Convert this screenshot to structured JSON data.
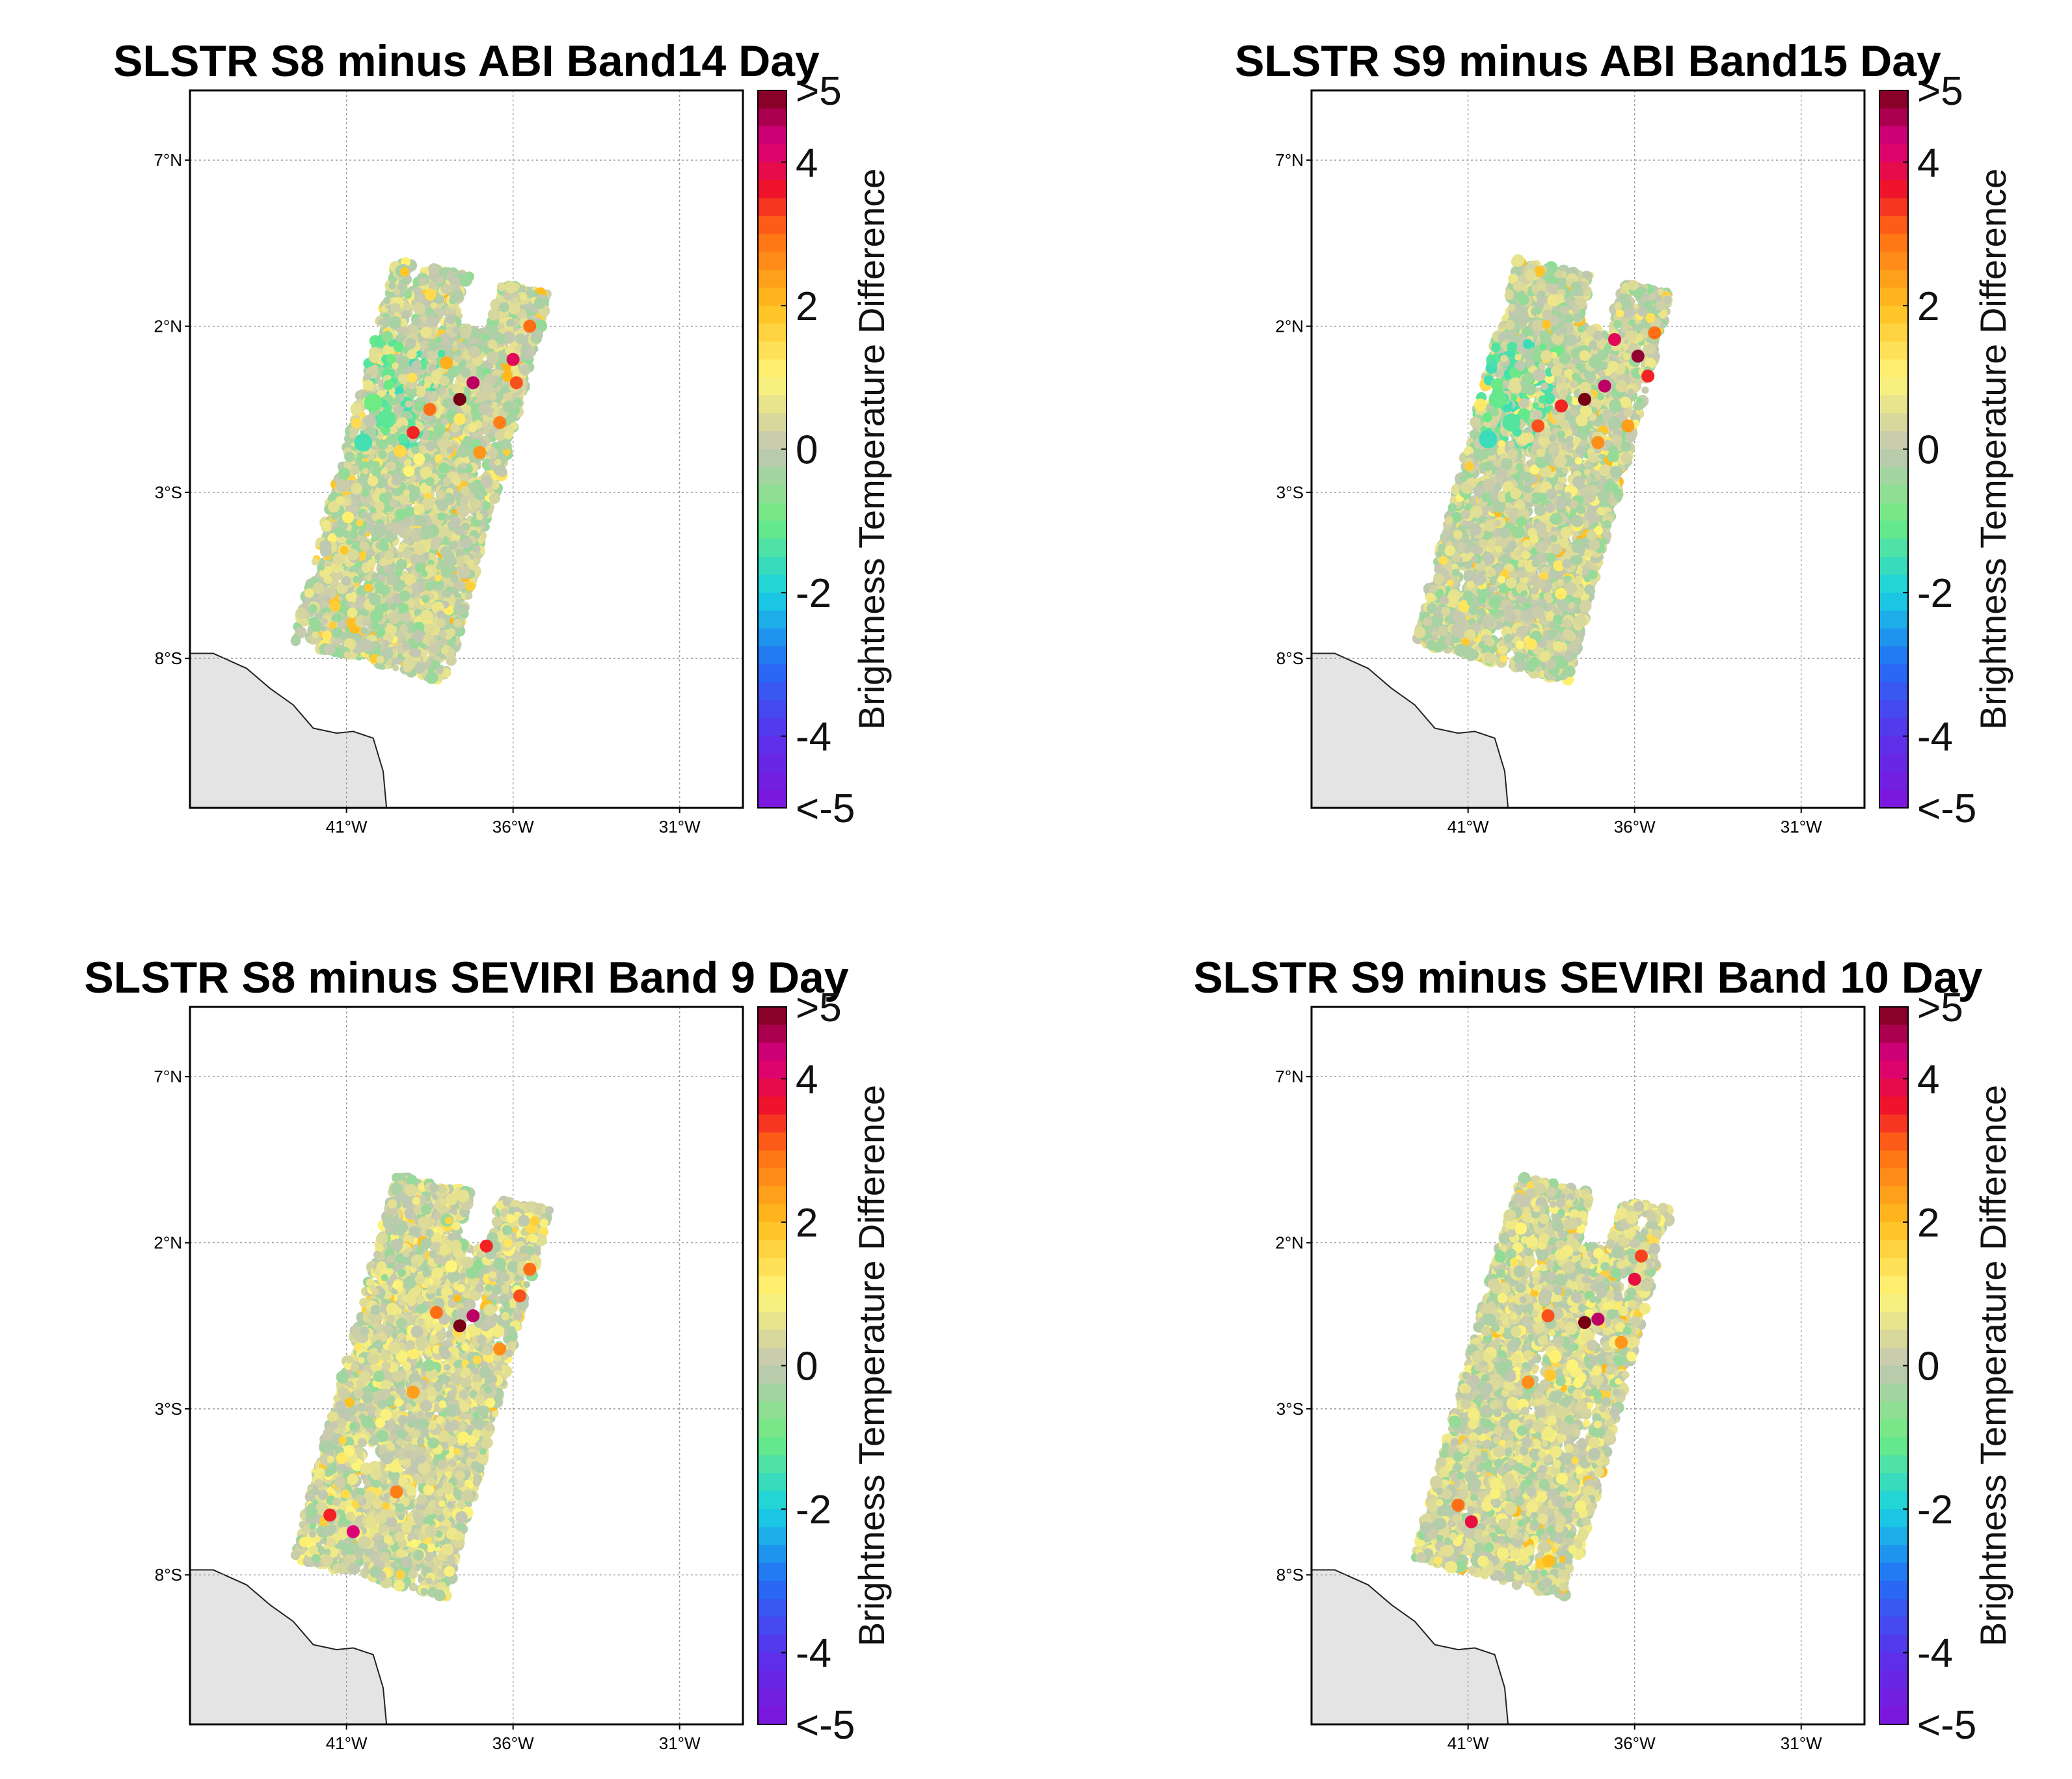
{
  "figure": {
    "description_type": "four map panels of brightness temperature differences"
  },
  "chart_data": [
    {
      "type": "heatmap",
      "title": "SLSTR S8 minus ABI Band14 Day",
      "lat_ticks": [
        "7°N",
        "2°N",
        "3°S",
        "8°S"
      ],
      "lat_values": [
        7,
        2,
        -3,
        -8
      ],
      "lon_ticks": [
        "41°W",
        "36°W",
        "31°W"
      ],
      "lon_values": [
        -41,
        -36,
        -31
      ],
      "xlim": [
        -45.7,
        -29.1
      ],
      "ylim": [
        -12.5,
        9.1
      ],
      "swath_corners": [
        [
          -39.5,
          4.0
        ],
        [
          -34.9,
          3.0
        ],
        [
          -38.0,
          -8.7
        ],
        [
          -42.6,
          -7.5
        ]
      ],
      "colorbar": {
        "label": "Brightness Temperature Difference",
        "ticks": [
          ">5",
          "4",
          "2",
          "0",
          "-2",
          "-4",
          "<-5"
        ],
        "tick_values": [
          5,
          4,
          2,
          0,
          -2,
          -4,
          -5
        ],
        "range": [
          -5,
          5
        ]
      },
      "hotspots": [
        [
          -37.6,
          -0.2,
          5
        ],
        [
          -37.2,
          0.3,
          4.5
        ],
        [
          -36.0,
          1.0,
          4
        ],
        [
          -39.0,
          -1.2,
          3.5
        ],
        [
          -38.5,
          -0.5,
          3
        ],
        [
          -35.9,
          0.3,
          3.2
        ],
        [
          -37.0,
          -1.8,
          2.5
        ],
        [
          -38.0,
          0.9,
          2.2
        ],
        [
          -36.4,
          -0.9,
          2.8
        ],
        [
          -35.5,
          2.0,
          3.0
        ]
      ],
      "cool_spots": [
        [
          -40.5,
          -1.5,
          -1.5
        ],
        [
          -39.8,
          -0.8,
          -1.2
        ],
        [
          -40.2,
          -0.3,
          -1.0
        ]
      ]
    },
    {
      "type": "heatmap",
      "title": "SLSTR S9 minus ABI Band15 Day",
      "lat_ticks": [
        "7°N",
        "2°N",
        "3°S",
        "8°S"
      ],
      "lat_values": [
        7,
        2,
        -3,
        -8
      ],
      "lon_ticks": [
        "41°W",
        "36°W",
        "31°W"
      ],
      "lon_values": [
        -41,
        -36,
        -31
      ],
      "xlim": [
        -45.7,
        -29.1
      ],
      "ylim": [
        -12.5,
        9.1
      ],
      "swath_corners": [
        [
          -39.5,
          4.0
        ],
        [
          -34.9,
          3.0
        ],
        [
          -38.0,
          -8.7
        ],
        [
          -42.6,
          -7.5
        ]
      ],
      "colorbar": {
        "label": "Brightness Temperature Difference",
        "ticks": [
          ">5",
          "4",
          "2",
          "0",
          "-2",
          "-4",
          "<-5"
        ],
        "tick_values": [
          5,
          4,
          2,
          0,
          -2,
          -4,
          -5
        ],
        "range": [
          -5,
          5
        ]
      },
      "hotspots": [
        [
          -37.5,
          -0.2,
          5
        ],
        [
          -36.9,
          0.2,
          4.5
        ],
        [
          -35.9,
          1.1,
          4.8
        ],
        [
          -38.9,
          -1.0,
          3.2
        ],
        [
          -38.2,
          -0.4,
          3.5
        ],
        [
          -35.6,
          0.5,
          3.5
        ],
        [
          -37.1,
          -1.5,
          2.6
        ],
        [
          -36.6,
          1.6,
          4.0
        ],
        [
          -36.2,
          -1.0,
          2.4
        ],
        [
          -35.4,
          1.8,
          3.0
        ]
      ],
      "cool_spots": [
        [
          -40.4,
          -1.4,
          -1.6
        ],
        [
          -39.7,
          -0.9,
          -1.3
        ],
        [
          -40.1,
          -0.2,
          -1.1
        ]
      ]
    },
    {
      "type": "heatmap",
      "title": "SLSTR S8 minus SEVIRI Band 9 Day",
      "lat_ticks": [
        "7°N",
        "2°N",
        "3°S",
        "8°S"
      ],
      "lat_values": [
        7,
        2,
        -3,
        -8
      ],
      "lon_ticks": [
        "41°W",
        "36°W",
        "31°W"
      ],
      "lon_values": [
        -41,
        -36,
        -31
      ],
      "xlim": [
        -45.7,
        -29.1
      ],
      "ylim": [
        -12.5,
        9.1
      ],
      "swath_corners": [
        [
          -39.5,
          4.0
        ],
        [
          -34.9,
          3.0
        ],
        [
          -38.0,
          -8.7
        ],
        [
          -42.6,
          -7.5
        ]
      ],
      "colorbar": {
        "label": "Brightness Temperature Difference",
        "ticks": [
          ">5",
          "4",
          "2",
          "0",
          "-2",
          "-4",
          "<-5"
        ],
        "tick_values": [
          5,
          4,
          2,
          0,
          -2,
          -4,
          -5
        ],
        "range": [
          -5,
          5
        ]
      },
      "hotspots": [
        [
          -37.6,
          -0.5,
          5
        ],
        [
          -37.2,
          -0.2,
          4.5
        ],
        [
          -36.8,
          1.9,
          3.5
        ],
        [
          -35.8,
          0.4,
          3.2
        ],
        [
          -38.3,
          -0.1,
          3.0
        ],
        [
          -41.5,
          -6.2,
          3.5
        ],
        [
          -40.8,
          -6.7,
          4.2
        ],
        [
          -39.5,
          -5.5,
          2.8
        ],
        [
          -36.4,
          -1.2,
          2.6
        ],
        [
          -39.0,
          -2.5,
          2.4
        ],
        [
          -35.5,
          1.2,
          3.0
        ]
      ],
      "cool_spots": []
    },
    {
      "type": "heatmap",
      "title": "SLSTR S9 minus SEVIRI Band 10 Day",
      "lat_ticks": [
        "7°N",
        "2°N",
        "3°S",
        "8°S"
      ],
      "lat_values": [
        7,
        2,
        -3,
        -8
      ],
      "lon_ticks": [
        "41°W",
        "36°W",
        "31°W"
      ],
      "lon_values": [
        -41,
        -36,
        -31
      ],
      "xlim": [
        -45.7,
        -29.1
      ],
      "ylim": [
        -12.5,
        9.1
      ],
      "swath_corners": [
        [
          -39.5,
          4.0
        ],
        [
          -34.9,
          3.0
        ],
        [
          -38.0,
          -8.7
        ],
        [
          -42.6,
          -7.5
        ]
      ],
      "colorbar": {
        "label": "Brightness Temperature Difference",
        "ticks": [
          ">5",
          "4",
          "2",
          "0",
          "-2",
          "-4",
          "<-5"
        ],
        "tick_values": [
          5,
          4,
          2,
          0,
          -2,
          -4,
          -5
        ],
        "range": [
          -5,
          5
        ]
      },
      "hotspots": [
        [
          -37.5,
          -0.4,
          5
        ],
        [
          -37.1,
          -0.3,
          4.5
        ],
        [
          -36.0,
          0.9,
          3.8
        ],
        [
          -38.6,
          -0.2,
          3.2
        ],
        [
          -40.9,
          -6.4,
          3.8
        ],
        [
          -41.3,
          -5.9,
          3.0
        ],
        [
          -35.8,
          1.6,
          3.3
        ],
        [
          -36.4,
          -1.0,
          2.5
        ],
        [
          -39.2,
          -2.2,
          2.6
        ]
      ],
      "cool_spots": []
    }
  ],
  "colors": {
    "land": "#e4e4e4",
    "coastline": "#222222",
    "grid": "#9a9a9a",
    "neutral": "#c2c7b2"
  }
}
